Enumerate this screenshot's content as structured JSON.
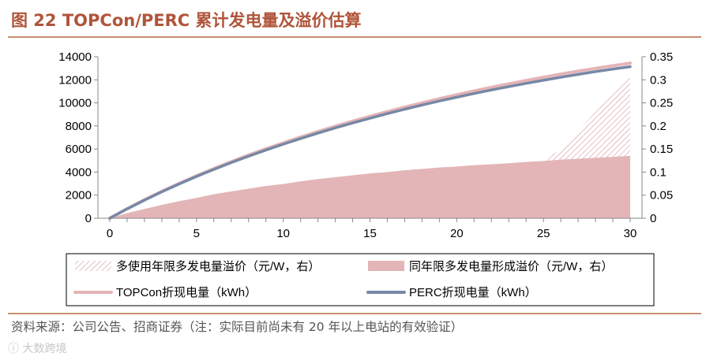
{
  "header": {
    "title": "图 22 TOPCon/PERC 累计发电量及溢价估算"
  },
  "chart_data": {
    "type": "area",
    "x": [
      0,
      1,
      2,
      3,
      4,
      5,
      6,
      7,
      8,
      9,
      10,
      11,
      12,
      13,
      14,
      15,
      16,
      17,
      18,
      19,
      20,
      21,
      22,
      23,
      24,
      25,
      26,
      27,
      28,
      29,
      30
    ],
    "xlim": [
      0,
      30
    ],
    "xticks": [
      "0",
      "5",
      "10",
      "15",
      "20",
      "25",
      "30"
    ],
    "ylim_left": [
      0,
      14000
    ],
    "yticks_left": [
      "0",
      "2000",
      "4000",
      "6000",
      "8000",
      "10000",
      "12000",
      "14000"
    ],
    "ylim_right": [
      0,
      0.35
    ],
    "yticks_right": [
      "0",
      "0.05",
      "0.1",
      "0.15",
      "0.2",
      "0.25",
      "0.3",
      "0.35"
    ],
    "series": [
      {
        "name": "多使用年限多发电量溢价（元/W，右）",
        "axis": "right",
        "style": "hatched-area",
        "x": [
          25,
          26,
          27,
          28,
          29,
          30
        ],
        "values": [
          0.125,
          0.15,
          0.19,
          0.23,
          0.27,
          0.31
        ]
      },
      {
        "name": "同年限多发电量形成溢价（元/W，右）",
        "axis": "right",
        "style": "area",
        "values": [
          0,
          0.011,
          0.02,
          0.029,
          0.037,
          0.044,
          0.052,
          0.058,
          0.064,
          0.07,
          0.074,
          0.08,
          0.085,
          0.089,
          0.093,
          0.097,
          0.1,
          0.104,
          0.107,
          0.11,
          0.112,
          0.115,
          0.117,
          0.119,
          0.122,
          0.124,
          0.127,
          0.129,
          0.131,
          0.133,
          0.135
        ]
      },
      {
        "name": "TOPCon折现电量（kWh）",
        "axis": "left",
        "style": "line",
        "values": [
          0,
          830,
          1600,
          2330,
          3020,
          3680,
          4300,
          4900,
          5470,
          6010,
          6530,
          7030,
          7510,
          7970,
          8410,
          8830,
          9240,
          9630,
          10000,
          10360,
          10700,
          11030,
          11350,
          11650,
          11940,
          12220,
          12490,
          12750,
          12990,
          13220,
          13440
        ]
      },
      {
        "name": "PERC折现电量（kWh）",
        "axis": "left",
        "style": "line",
        "values": [
          0,
          810,
          1570,
          2290,
          2970,
          3620,
          4230,
          4820,
          5380,
          5910,
          6420,
          6910,
          7380,
          7830,
          8260,
          8670,
          9070,
          9450,
          9810,
          10160,
          10490,
          10810,
          11120,
          11410,
          11690,
          11960,
          12220,
          12470,
          12710,
          12930,
          13140
        ]
      }
    ],
    "legend": {
      "placement": "bottom",
      "items": [
        {
          "label": "多使用年限多发电量溢价（元/W，右）",
          "style": "hatch"
        },
        {
          "label": "同年限多发电量形成溢价（元/W，右）",
          "style": "area"
        },
        {
          "label": "TOPCon折现电量（kWh）",
          "style": "line"
        },
        {
          "label": "PERC折现电量（kWh）",
          "style": "line"
        }
      ]
    },
    "colors": {
      "area": "#e3b5b7",
      "hatch": "#d69598",
      "topcon": "#e4b4b7",
      "perc": "#7788a5",
      "axis": "#888888",
      "text": "#000000"
    }
  },
  "footer": {
    "source": "资料来源：公司公告、招商证券（注：实际目前尚未有 20 年以上电站的有效验证）",
    "watermark": "大数跨境"
  }
}
